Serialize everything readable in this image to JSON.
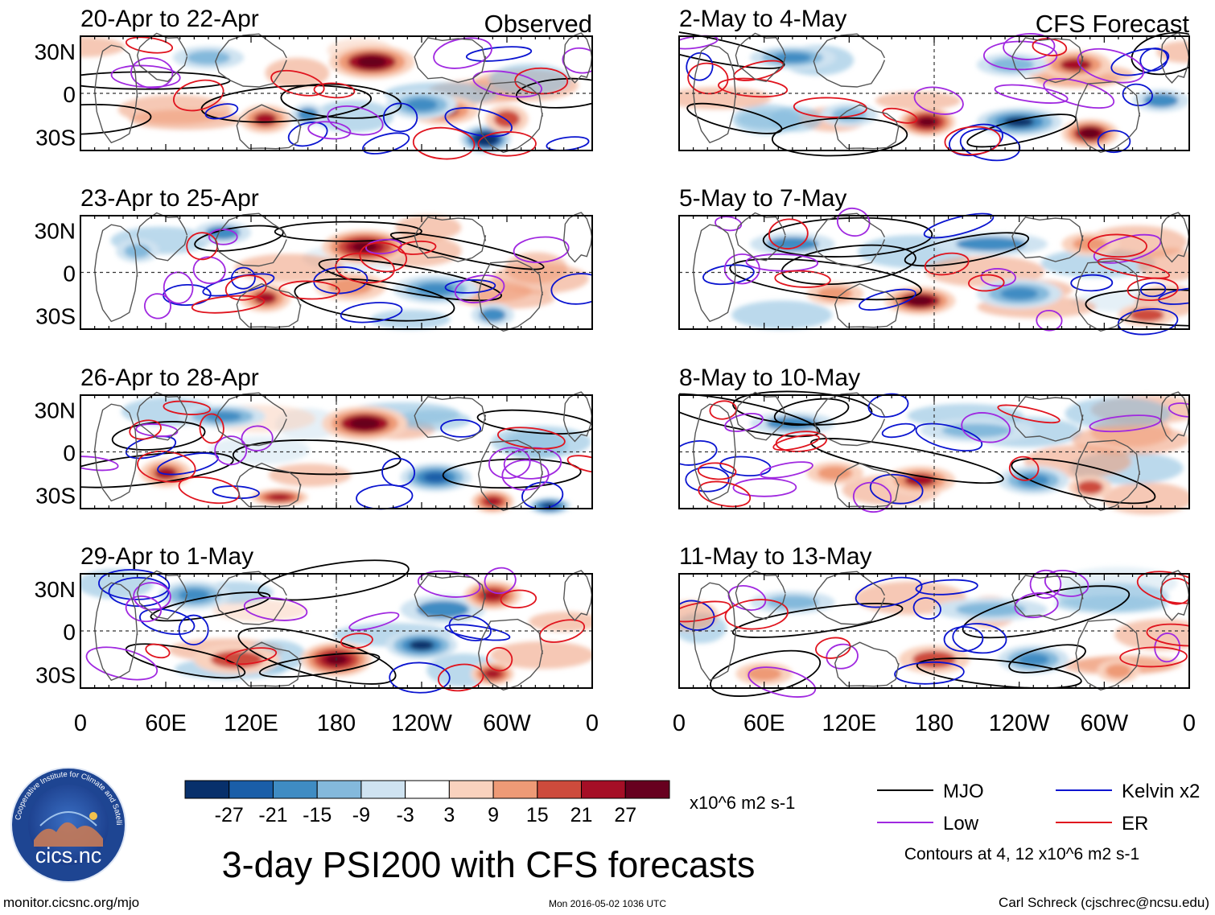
{
  "chart_data": {
    "type": "heatmap",
    "title": "3-day PSI200 with CFS forecasts",
    "variable": "PSI200",
    "units": "x10^6 m2 s-1",
    "color_scale": {
      "ticks": [
        "-27",
        "-21",
        "-15",
        "-9",
        "-3",
        "3",
        "9",
        "15",
        "21",
        "27"
      ],
      "colors": [
        "#08306b",
        "#1a5ea8",
        "#3f8cc3",
        "#84b9dc",
        "#cfe3f1",
        "#ffffff",
        "#f9d2be",
        "#ee9a76",
        "#cd4b3c",
        "#a50f26",
        "#67001f"
      ]
    },
    "x_ticks": [
      "0",
      "60E",
      "120E",
      "180",
      "120W",
      "60W",
      "0"
    ],
    "y_ticks": [
      "30N",
      "0",
      "30S"
    ],
    "columns": [
      {
        "header": "Observed",
        "panels": [
          {
            "label": "20-Apr to 22-Apr",
            "features": [
              [
                205,
                22,
                30,
                12,
                1.4
              ],
              [
                255,
                -12,
                25,
                10,
                1.0
              ],
              [
                285,
                -32,
                18,
                10,
                -1.7
              ],
              [
                240,
                -8,
                25,
                10,
                -1.0
              ],
              [
                130,
                -18,
                18,
                10,
                1.0
              ],
              [
                160,
                -15,
                12,
                8,
                -0.8
              ],
              [
                90,
                25,
                25,
                8,
                -0.6
              ],
              [
                300,
                -18,
                15,
                10,
                0.8
              ]
            ]
          },
          {
            "label": "23-Apr to 25-Apr",
            "features": [
              [
                200,
                18,
                30,
                12,
                1.5
              ],
              [
                130,
                -18,
                18,
                10,
                1.0
              ],
              [
                190,
                -10,
                25,
                10,
                0.6
              ],
              [
                250,
                -12,
                30,
                10,
                -1.0
              ],
              [
                100,
                28,
                20,
                8,
                -0.8
              ],
              [
                40,
                15,
                15,
                8,
                -0.6
              ],
              [
                290,
                -30,
                15,
                8,
                -0.8
              ]
            ]
          },
          {
            "label": "26-Apr to 28-Apr",
            "features": [
              [
                200,
                20,
                30,
                12,
                1.4
              ],
              [
                60,
                -15,
                18,
                10,
                1.0
              ],
              [
                250,
                -18,
                25,
                10,
                -1.2
              ],
              [
                290,
                -35,
                15,
                8,
                1.2
              ],
              [
                100,
                25,
                30,
                8,
                -1.0
              ],
              [
                140,
                -32,
                20,
                6,
                1.2
              ],
              [
                330,
                -38,
                15,
                6,
                -1.5
              ]
            ]
          },
          {
            "label": "29-Apr to 1-May",
            "features": [
              [
                180,
                -20,
                25,
                12,
                1.6
              ],
              [
                240,
                -10,
                25,
                10,
                -1.3
              ],
              [
                110,
                -20,
                30,
                10,
                0.8
              ],
              [
                255,
                15,
                30,
                10,
                -0.8
              ],
              [
                80,
                25,
                25,
                10,
                -1.0
              ],
              [
                290,
                25,
                20,
                10,
                1.2
              ],
              [
                290,
                -30,
                15,
                8,
                1.2
              ]
            ]
          }
        ]
      },
      {
        "header": "CFS Forecast",
        "panels": [
          {
            "label": "2-May to 4-May",
            "features": [
              [
                175,
                -20,
                20,
                10,
                1.6
              ],
              [
                240,
                -20,
                30,
                10,
                -1.3
              ],
              [
                290,
                -28,
                20,
                10,
                1.4
              ],
              [
                280,
                20,
                25,
                10,
                1.0
              ],
              [
                80,
                25,
                30,
                8,
                -1.0
              ],
              [
                235,
                20,
                25,
                8,
                -0.6
              ],
              [
                120,
                -15,
                20,
                8,
                -0.6
              ],
              [
                340,
                -5,
                20,
                8,
                -0.8
              ]
            ]
          },
          {
            "label": "5-May to 7-May",
            "features": [
              [
                170,
                -20,
                25,
                10,
                1.4
              ],
              [
                240,
                -15,
                30,
                10,
                -1.0
              ],
              [
                80,
                20,
                30,
                8,
                -0.8
              ],
              [
                220,
                20,
                40,
                8,
                -0.8
              ],
              [
                110,
                -15,
                20,
                8,
                0.6
              ],
              [
                330,
                -30,
                20,
                8,
                0.8
              ],
              [
                290,
                20,
                20,
                8,
                0.6
              ]
            ]
          },
          {
            "label": "8-May to 10-May",
            "features": [
              [
                170,
                -20,
                25,
                10,
                1.0
              ],
              [
                250,
                -20,
                25,
                10,
                -1.0
              ],
              [
                80,
                20,
                30,
                8,
                -0.8
              ],
              [
                210,
                15,
                40,
                8,
                -0.6
              ],
              [
                110,
                -15,
                20,
                8,
                0.6
              ],
              [
                290,
                -25,
                15,
                8,
                0.8
              ]
            ]
          },
          {
            "label": "11-May to 13-May",
            "features": [
              [
                180,
                -20,
                25,
                10,
                0.8
              ],
              [
                250,
                -20,
                25,
                10,
                -1.0
              ],
              [
                80,
                20,
                30,
                8,
                -0.6
              ],
              [
                220,
                15,
                40,
                8,
                -0.5
              ],
              [
                60,
                -30,
                20,
                8,
                0.6
              ],
              [
                310,
                -28,
                15,
                8,
                0.6
              ]
            ]
          }
        ]
      }
    ],
    "legend": [
      {
        "label": "MJO",
        "color": "#000000"
      },
      {
        "label": "Kelvin x2",
        "color": "#0a14d0"
      },
      {
        "label": "Low",
        "color": "#a028e0"
      },
      {
        "label": "ER",
        "color": "#e0141e"
      }
    ],
    "contour_note": "Contours at 4, 12 x10^6 m2 s-1"
  },
  "footer": {
    "url": "monitor.cicsnc.org/mjo",
    "timestamp": "Mon 2016-05-02 1036 UTC",
    "credit": "Carl Schreck (cjschrec@ncsu.edu)"
  },
  "logo": {
    "text": "cics.nc",
    "ring_text": "Cooperative Institute for Climate and Satellites"
  }
}
